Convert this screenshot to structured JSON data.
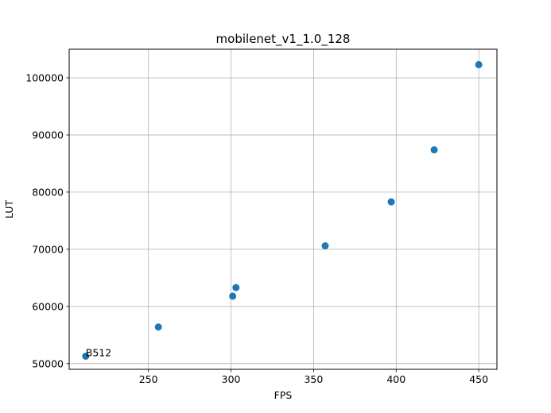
{
  "chart_data": {
    "type": "scatter",
    "title": "mobilenet_v1_1.0_128",
    "xlabel": "FPS",
    "ylabel": "LUT",
    "xlim": [
      202,
      461
    ],
    "ylim": [
      49000,
      105000
    ],
    "xticks": [
      250,
      300,
      350,
      400,
      450
    ],
    "yticks": [
      50000,
      60000,
      70000,
      80000,
      90000,
      100000
    ],
    "xtick_labels": [
      "250",
      "300",
      "350",
      "400",
      "450"
    ],
    "ytick_labels": [
      "50000",
      "60000",
      "70000",
      "80000",
      "90000",
      "100000"
    ],
    "grid": true,
    "marker_color": "#1f77b4",
    "points": [
      {
        "x": 212,
        "y": 51300
      },
      {
        "x": 256,
        "y": 56400
      },
      {
        "x": 301,
        "y": 61800
      },
      {
        "x": 303,
        "y": 63300
      },
      {
        "x": 357,
        "y": 70600
      },
      {
        "x": 397,
        "y": 78300
      },
      {
        "x": 423,
        "y": 87400
      },
      {
        "x": 450,
        "y": 102300
      }
    ],
    "annotations": [
      {
        "text": "B512",
        "x": 212,
        "y": 51300
      }
    ]
  }
}
